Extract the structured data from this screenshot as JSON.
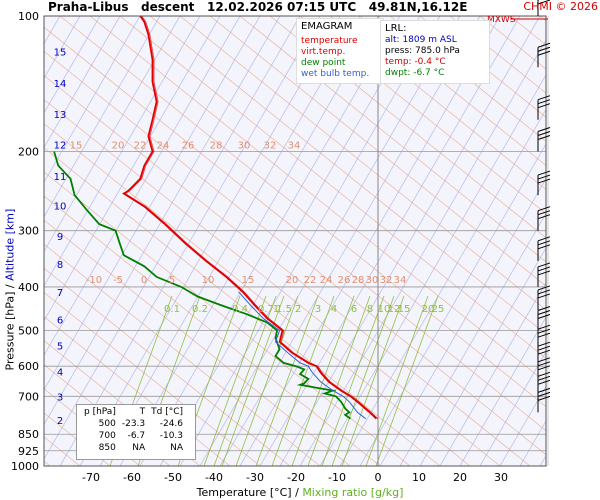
{
  "header": {
    "station": "Praha-Libus",
    "mode": "descent",
    "datetime": "12.02.2026 07:15 UTC",
    "coords": "49.81N,16.12E",
    "copyright": "CHMI © 2026"
  },
  "legend": {
    "title": "EMAGRAM",
    "items": [
      {
        "label": "temperature",
        "color": "#e00000"
      },
      {
        "label": "virt.temp.",
        "color": "#e00000"
      },
      {
        "label": "dew point",
        "color": "#008000"
      },
      {
        "label": "wet bulb temp.",
        "color": "#3060e0"
      }
    ]
  },
  "lrl": {
    "title": "LRL:",
    "lines": [
      {
        "text": "alt: 1809 m ASL",
        "color": "#0000c0"
      },
      {
        "text": "press: 785.0 hPa",
        "color": "#000000"
      },
      {
        "text": "temp: -0.4 °C",
        "color": "#d00000"
      },
      {
        "text": "dwpt: -6.7 °C",
        "color": "#008000"
      }
    ]
  },
  "table": {
    "headers": [
      "p [hPa]",
      "T",
      "Td [°C]"
    ],
    "rows": [
      [
        "500",
        "-23.3",
        "-24.6"
      ],
      [
        "700",
        "-6.7",
        "-10.3"
      ],
      [
        "850",
        "NA",
        "NA"
      ]
    ]
  },
  "axes": {
    "x_title": "Temperature [°C]",
    "x_separator": "/",
    "x_title2": "Mixing ratio [g/kg]",
    "y_title": "Pressure [hPa]",
    "y_separator": "/",
    "y_title2": "Altitude [km]",
    "wind_label": "MXWS"
  },
  "colors": {
    "temperature": "#e00000",
    "dewpoint": "#008000",
    "wetbulb": "#3060e0",
    "dry_adiabat": "#e8a080",
    "moist_adiabat": "#c0c0e8",
    "mixing_ratio": "#90c040",
    "isotherm_labels": "#e09070",
    "altitude": "#0000c0"
  },
  "chart_data": {
    "type": "line",
    "title": "",
    "xlabel": "Temperature [°C] / Mixing ratio [g/kg]",
    "ylabel": "Pressure [hPa] / Altitude [km]",
    "xlim": [
      -80,
      40
    ],
    "ylim": [
      1000,
      100
    ],
    "y_scale": "log",
    "x_ticks": [
      -70,
      -60,
      -50,
      -40,
      -30,
      -20,
      -10,
      0,
      10,
      20,
      30
    ],
    "y_ticks": [
      100,
      200,
      300,
      400,
      500,
      600,
      700,
      850,
      925,
      1000
    ],
    "altitude_km_labels": [
      {
        "km": "2",
        "p": 790
      },
      {
        "km": "3",
        "p": 700
      },
      {
        "km": "4",
        "p": 616
      },
      {
        "km": "5",
        "p": 540
      },
      {
        "km": "6",
        "p": 472
      },
      {
        "km": "7",
        "p": 410
      },
      {
        "km": "8",
        "p": 356
      },
      {
        "km": "9",
        "p": 308
      },
      {
        "km": "10",
        "p": 264
      },
      {
        "km": "11",
        "p": 227
      },
      {
        "km": "12",
        "p": 193
      },
      {
        "km": "13",
        "p": 165
      },
      {
        "km": "14",
        "p": 141
      },
      {
        "km": "15",
        "p": 120
      }
    ],
    "isotherm_labels_upper": [
      "15",
      "20",
      "22",
      "24",
      "26",
      "28",
      "30",
      "32",
      "34"
    ],
    "isotherm_labels_lower": [
      "-10",
      "-5",
      "0",
      "5",
      "10",
      "15",
      "20",
      "22",
      "24",
      "26",
      "28",
      "30",
      "32",
      "34"
    ],
    "mixing_ratio_labels": [
      "0.1",
      "0.2",
      "0.4",
      "0.7",
      "1",
      "1.5",
      "2",
      "3",
      "4",
      "6",
      "8",
      "10",
      "12",
      "15",
      "20",
      "25"
    ],
    "grid": true,
    "series": [
      {
        "name": "temperature",
        "color": "#e00000",
        "points": [
          [
            785,
            -0.4
          ],
          [
            760,
            -2
          ],
          [
            720,
            -5
          ],
          [
            700,
            -6.7
          ],
          [
            680,
            -9
          ],
          [
            650,
            -12
          ],
          [
            620,
            -14
          ],
          [
            600,
            -15
          ],
          [
            590,
            -17
          ],
          [
            560,
            -21
          ],
          [
            530,
            -24
          ],
          [
            500,
            -23.3
          ],
          [
            470,
            -27
          ],
          [
            440,
            -30
          ],
          [
            410,
            -33
          ],
          [
            380,
            -37
          ],
          [
            350,
            -42
          ],
          [
            320,
            -47
          ],
          [
            290,
            -52
          ],
          [
            265,
            -57
          ],
          [
            248,
            -62
          ],
          [
            245,
            -61
          ],
          [
            240,
            -60
          ],
          [
            230,
            -58
          ],
          [
            215,
            -57
          ],
          [
            200,
            -55
          ],
          [
            185,
            -56
          ],
          [
            170,
            -55
          ],
          [
            155,
            -54
          ],
          [
            140,
            -55
          ],
          [
            125,
            -55
          ],
          [
            110,
            -56
          ],
          [
            103,
            -57
          ],
          [
            100,
            -58
          ]
        ]
      },
      {
        "name": "dew point",
        "color": "#008000",
        "points": [
          [
            785,
            -6.7
          ],
          [
            770,
            -8
          ],
          [
            760,
            -7
          ],
          [
            745,
            -8
          ],
          [
            720,
            -9
          ],
          [
            700,
            -10.3
          ],
          [
            690,
            -13
          ],
          [
            680,
            -11
          ],
          [
            670,
            -15
          ],
          [
            660,
            -19
          ],
          [
            655,
            -18
          ],
          [
            640,
            -17
          ],
          [
            625,
            -19
          ],
          [
            610,
            -18
          ],
          [
            600,
            -20
          ],
          [
            590,
            -23
          ],
          [
            570,
            -25
          ],
          [
            550,
            -24
          ],
          [
            520,
            -25
          ],
          [
            500,
            -24.6
          ],
          [
            480,
            -27
          ],
          [
            460,
            -32
          ],
          [
            440,
            -38
          ],
          [
            420,
            -44
          ],
          [
            400,
            -48
          ],
          [
            380,
            -54
          ],
          [
            360,
            -57
          ],
          [
            340,
            -62
          ],
          [
            320,
            -63
          ],
          [
            300,
            -64
          ],
          [
            290,
            -68
          ],
          [
            270,
            -71
          ],
          [
            250,
            -74
          ],
          [
            230,
            -75
          ],
          [
            215,
            -78
          ],
          [
            200,
            -79
          ]
        ]
      },
      {
        "name": "wet bulb temp.",
        "color": "#3060e0",
        "points": [
          [
            785,
            -3
          ],
          [
            760,
            -5
          ],
          [
            720,
            -7
          ],
          [
            700,
            -8.5
          ],
          [
            680,
            -11
          ],
          [
            650,
            -14
          ],
          [
            620,
            -16
          ],
          [
            600,
            -17
          ],
          [
            590,
            -19
          ],
          [
            560,
            -22
          ],
          [
            530,
            -25
          ],
          [
            500,
            -24
          ],
          [
            470,
            -28
          ],
          [
            440,
            -31
          ],
          [
            410,
            -34
          ]
        ]
      }
    ],
    "wind_barbs_pressure": [
      100,
      130,
      170,
      200,
      250,
      300,
      350,
      400,
      450,
      500,
      550,
      600,
      650,
      700,
      760
    ]
  }
}
